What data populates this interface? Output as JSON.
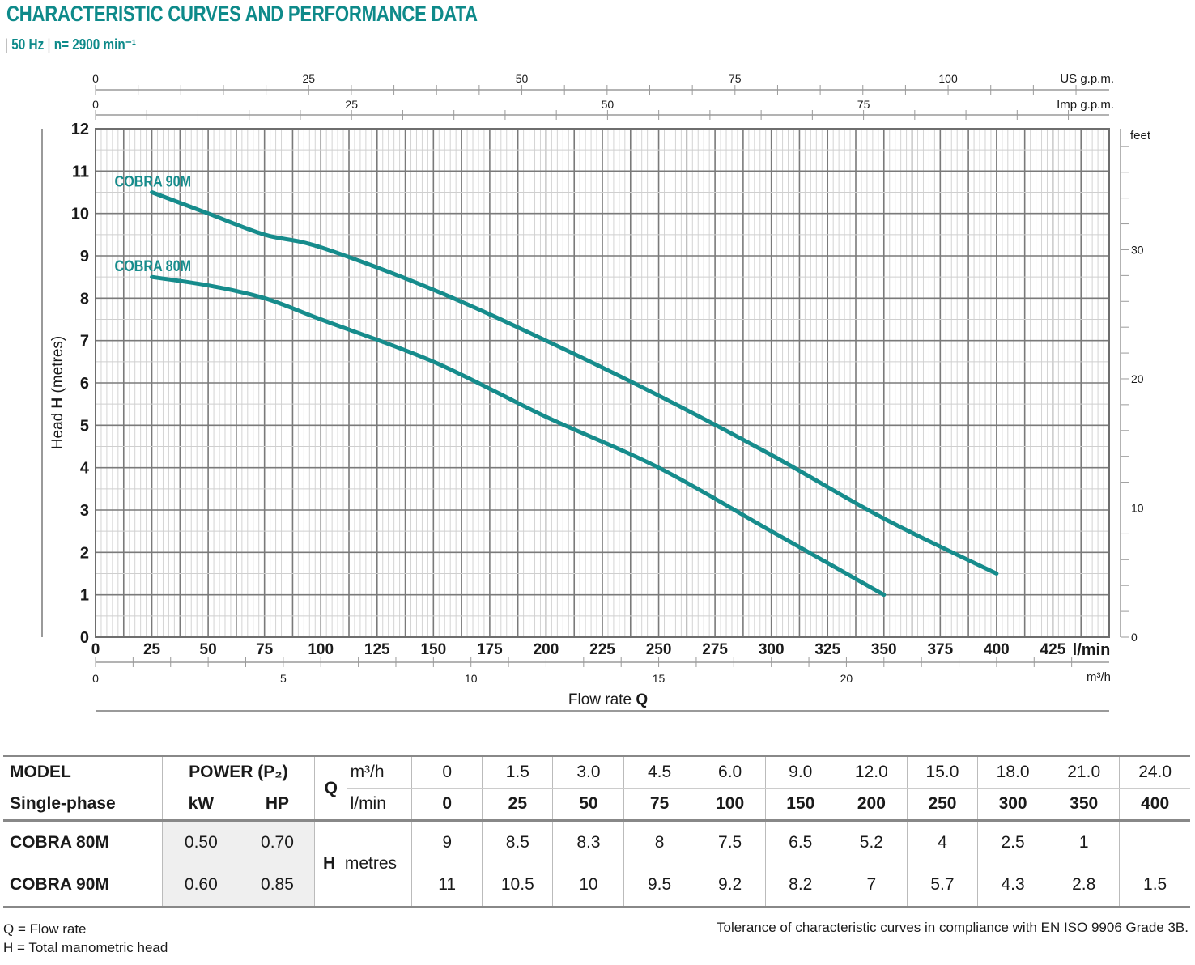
{
  "header": {
    "title": "CHARACTERISTIC CURVES AND PERFORMANCE DATA",
    "freq": "50 Hz",
    "speed": "n= 2900 min⁻¹"
  },
  "chart_data": {
    "type": "line",
    "xlabel_prefix": "Flow rate ",
    "xlabel_bold": "Q",
    "ylabel_prefix": "Head ",
    "ylabel_bold": "H",
    "ylabel_suffix": " (metres)",
    "x_unit": "l/min",
    "xlim": [
      0,
      450
    ],
    "ylim": [
      0,
      12
    ],
    "x_ticks": [
      0,
      25,
      50,
      75,
      100,
      125,
      150,
      175,
      200,
      225,
      250,
      275,
      300,
      325,
      350,
      375,
      400,
      425
    ],
    "y_ticks": [
      0,
      1,
      2,
      3,
      4,
      5,
      6,
      7,
      8,
      9,
      10,
      11,
      12
    ],
    "grid": true,
    "secondary_axes": {
      "us_gpm": {
        "unit": "US g.p.m.",
        "ticks": [
          0,
          25,
          50,
          75,
          100
        ],
        "labels": [
          "0",
          "25",
          "50",
          "75",
          "100"
        ]
      },
      "imp_gpm": {
        "unit": "Imp g.p.m.",
        "ticks": [
          0,
          25,
          50,
          75
        ],
        "labels": [
          "0",
          "25",
          "50",
          "75"
        ]
      },
      "m3h": {
        "unit": "m³/h",
        "ticks": [
          0,
          5,
          10,
          15,
          20
        ],
        "labels": [
          "0",
          "5",
          "10",
          "15",
          "20"
        ]
      },
      "feet": {
        "unit": "feet",
        "ticks": [
          0,
          10,
          20,
          30
        ],
        "labels": [
          "0",
          "10",
          "20",
          "30"
        ]
      }
    },
    "series": [
      {
        "name": "COBRA 90M",
        "color": "#168c8c",
        "x": [
          25,
          50,
          75,
          100,
          150,
          200,
          250,
          300,
          350,
          400
        ],
        "y": [
          10.5,
          10,
          9.5,
          9.2,
          8.2,
          7,
          5.7,
          4.3,
          2.8,
          1.5
        ]
      },
      {
        "name": "COBRA 80M",
        "color": "#168c8c",
        "x": [
          25,
          50,
          75,
          100,
          150,
          200,
          250,
          300,
          350
        ],
        "y": [
          8.5,
          8.3,
          8,
          7.5,
          6.5,
          5.2,
          4,
          2.5,
          1
        ]
      }
    ]
  },
  "table": {
    "model_label": "MODEL",
    "phase_label": "Single-phase",
    "power_label": "POWER (P₂)",
    "kw_label": "kW",
    "hp_label": "HP",
    "q_label": "Q",
    "m3h_label": "m³/h",
    "lmin_label": "l/min",
    "h_label": "H",
    "metres_label": "metres",
    "m3h_values": [
      "0",
      "1.5",
      "3.0",
      "4.5",
      "6.0",
      "9.0",
      "12.0",
      "15.0",
      "18.0",
      "21.0",
      "24.0"
    ],
    "lmin_values": [
      "0",
      "25",
      "50",
      "75",
      "100",
      "150",
      "200",
      "250",
      "300",
      "350",
      "400"
    ],
    "rows": [
      {
        "model": "COBRA 80M",
        "kw": "0.50",
        "hp": "0.70",
        "h": [
          "9",
          "8.5",
          "8.3",
          "8",
          "7.5",
          "6.5",
          "5.2",
          "4",
          "2.5",
          "1",
          ""
        ]
      },
      {
        "model": "COBRA 90M",
        "kw": "0.60",
        "hp": "0.85",
        "h": [
          "11",
          "10.5",
          "10",
          "9.5",
          "9.2",
          "8.2",
          "7",
          "5.7",
          "4.3",
          "2.8",
          "1.5"
        ]
      }
    ]
  },
  "notes": {
    "q_note": "Q = Flow rate",
    "h_note": "H = Total manometric head",
    "tolerance": "Tolerance of characteristic curves in compliance with EN ISO 9906 Grade 3B."
  }
}
